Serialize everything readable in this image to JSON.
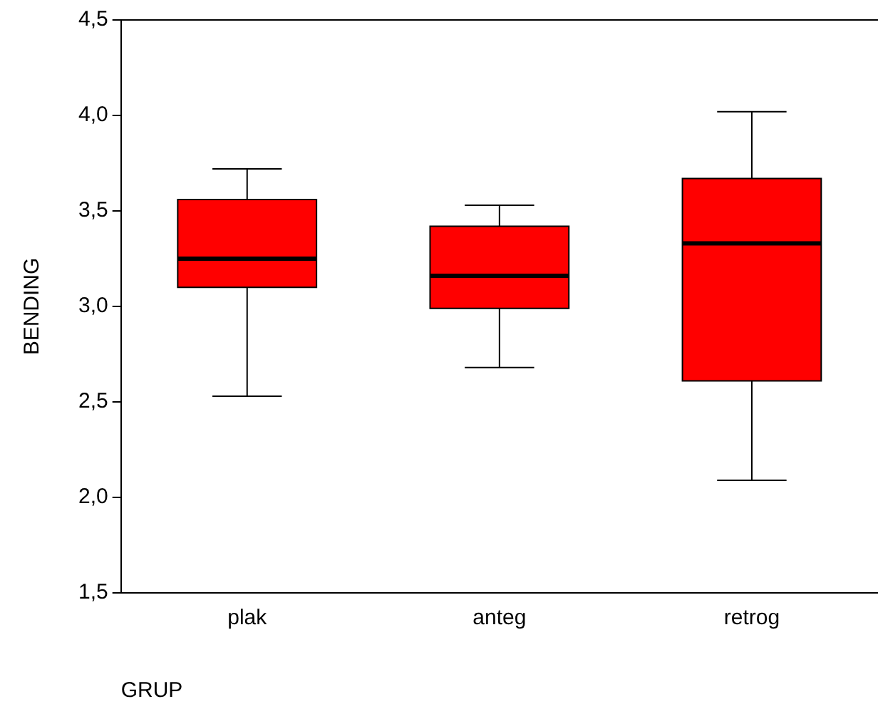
{
  "chart_data": {
    "type": "box",
    "xlabel": "GRUP",
    "ylabel": "BENDING",
    "categories": [
      "plak",
      "anteg",
      "retrog"
    ],
    "color": "#ff0000",
    "boxes": [
      {
        "low": 2.53,
        "q1": 3.1,
        "median": 3.25,
        "q3": 3.56,
        "high": 3.72
      },
      {
        "low": 2.68,
        "q1": 2.99,
        "median": 3.16,
        "q3": 3.42,
        "high": 3.53
      },
      {
        "low": 2.09,
        "q1": 2.61,
        "median": 3.33,
        "q3": 3.67,
        "high": 4.02
      }
    ],
    "ylim": [
      1.5,
      4.5
    ],
    "yticks": [
      {
        "value": 1.5,
        "label": "1,5"
      },
      {
        "value": 2.0,
        "label": "2,0"
      },
      {
        "value": 2.5,
        "label": "2,5"
      },
      {
        "value": 3.0,
        "label": "3,0"
      },
      {
        "value": 3.5,
        "label": "3,5"
      },
      {
        "value": 4.0,
        "label": "4,0"
      },
      {
        "value": 4.5,
        "label": "4,5"
      }
    ],
    "grid": false,
    "legend": false
  }
}
